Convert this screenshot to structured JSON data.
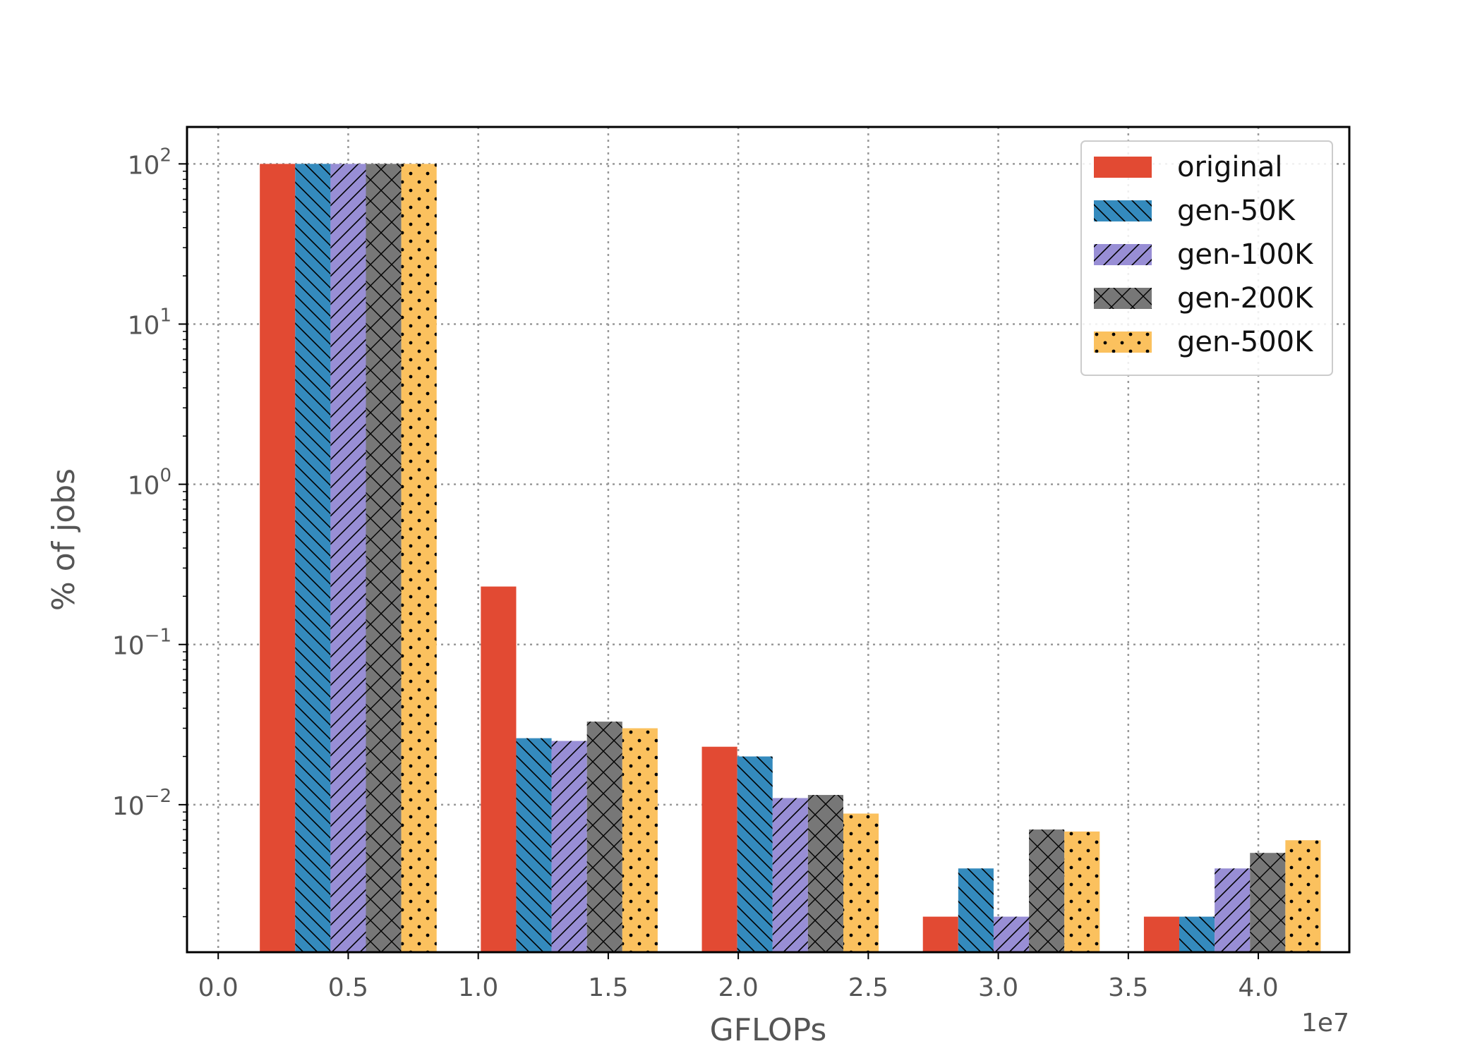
{
  "chart_data": {
    "type": "bar",
    "title": "",
    "xlabel": "GFLOPs",
    "ylabel": "% of jobs",
    "x_offset_label": "1e7",
    "yscale": "log",
    "ylim": [
      0.0012,
      170
    ],
    "xlim": [
      -0.12,
      4.35
    ],
    "x_unit_multiplier": 10000000,
    "grid": true,
    "legend_position": "top-right",
    "x_ticks": [
      "0.0",
      "0.5",
      "1.0",
      "1.5",
      "2.0",
      "2.5",
      "3.0",
      "3.5",
      "4.0"
    ],
    "y_ticks": [
      {
        "base": "10",
        "exp": "2"
      },
      {
        "base": "10",
        "exp": "1"
      },
      {
        "base": "10",
        "exp": "0"
      },
      {
        "base": "10",
        "exp": "−1"
      },
      {
        "base": "10",
        "exp": "−2"
      }
    ],
    "categories": [
      0.5,
      1.35,
      2.2,
      3.05,
      3.9
    ],
    "series": [
      {
        "name": "original",
        "color": "#E24A33",
        "hatch": "none",
        "values": [
          100,
          0.23,
          0.023,
          0.002,
          0.002
        ]
      },
      {
        "name": "gen-50K",
        "color": "#348ABD",
        "hatch": "back",
        "values": [
          100,
          0.026,
          0.02,
          0.004,
          0.002
        ]
      },
      {
        "name": "gen-100K",
        "color": "#988ED5",
        "hatch": "fwd",
        "values": [
          100,
          0.025,
          0.011,
          0.002,
          0.004
        ]
      },
      {
        "name": "gen-200K",
        "color": "#777777",
        "hatch": "cross",
        "values": [
          100,
          0.033,
          0.0115,
          0.007,
          0.005
        ]
      },
      {
        "name": "gen-500K",
        "color": "#FBC15E",
        "hatch": "dots",
        "values": [
          100,
          0.03,
          0.0088,
          0.0068,
          0.006
        ]
      }
    ]
  }
}
